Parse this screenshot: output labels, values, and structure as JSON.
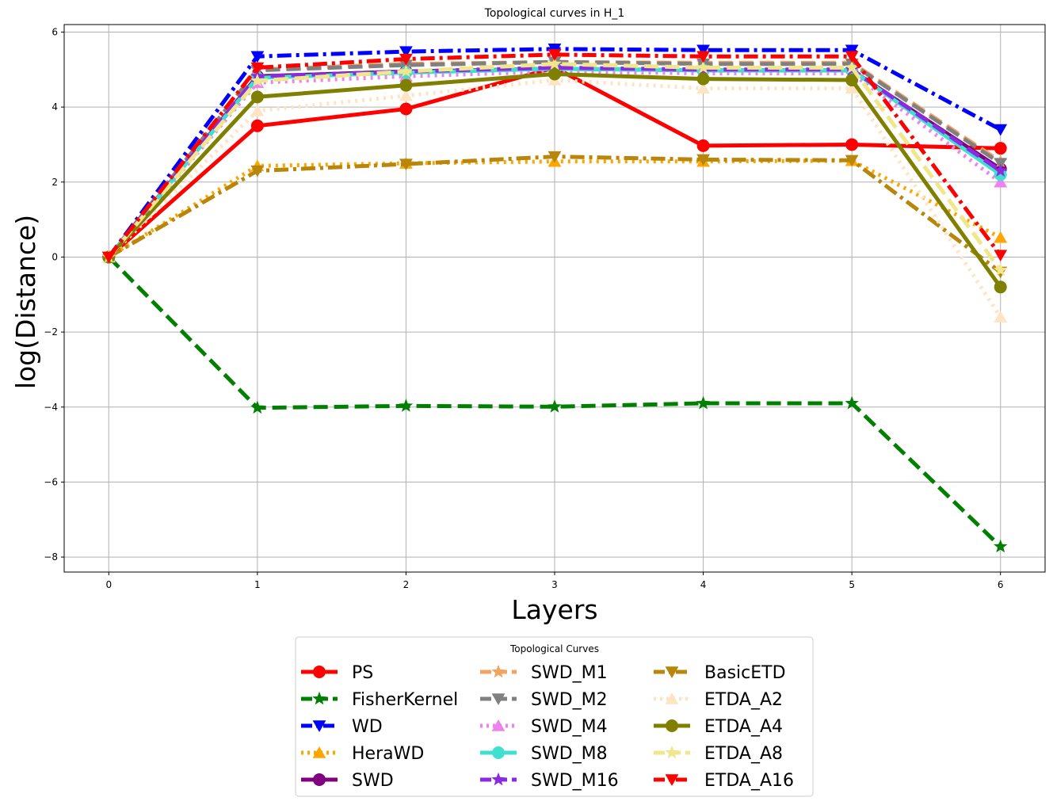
{
  "chart_data": {
    "type": "line",
    "title": "Topological curves in H_1",
    "xlabel": "Layers",
    "ylabel": "log(Distance)",
    "x": [
      0,
      1,
      2,
      3,
      4,
      5,
      6
    ],
    "xlim": [
      -0.3,
      6.3
    ],
    "ylim": [
      -8.4,
      6.2
    ],
    "xticks": [
      0,
      1,
      2,
      3,
      4,
      5,
      6
    ],
    "yticks": [
      -8,
      -6,
      -4,
      -2,
      0,
      2,
      4,
      6
    ],
    "ytick_labels": [
      "−8",
      "−6",
      "−4",
      "−2",
      "0",
      "2",
      "4",
      "6"
    ],
    "grid": true,
    "legend": {
      "title": "Topological Curves",
      "placement": "lower-center-outside",
      "columns": 3
    },
    "series": [
      {
        "name": "PS",
        "color": "#ff0000",
        "dash": "solid",
        "marker": "circle",
        "values": [
          0,
          3.5,
          3.95,
          5.05,
          2.97,
          3.0,
          2.9
        ]
      },
      {
        "name": "FisherKernel",
        "color": "#008000",
        "dash": "dashed",
        "marker": "star",
        "values": [
          0,
          -4.02,
          -3.97,
          -3.99,
          -3.9,
          -3.9,
          -7.72
        ]
      },
      {
        "name": "WD",
        "color": "#0000ff",
        "dash": "dashdot",
        "marker": "triangle-down",
        "values": [
          0,
          5.35,
          5.48,
          5.55,
          5.52,
          5.52,
          3.4
        ]
      },
      {
        "name": "HeraWD",
        "color": "#ffa500",
        "dash": "dotted",
        "marker": "triangle-up",
        "values": [
          0,
          2.43,
          2.5,
          2.55,
          2.55,
          2.57,
          0.52
        ]
      },
      {
        "name": "SWD",
        "color": "#800080",
        "dash": "solid",
        "marker": "circle",
        "values": [
          0,
          4.82,
          4.95,
          5.02,
          4.98,
          4.98,
          2.35
        ]
      },
      {
        "name": "SWD_M1",
        "color": "#f4a460",
        "dash": "dashed",
        "marker": "star",
        "values": [
          0,
          5.0,
          5.15,
          5.2,
          5.18,
          5.18,
          2.55
        ]
      },
      {
        "name": "SWD_M2",
        "color": "#808080",
        "dash": "dashed",
        "marker": "triangle-down",
        "values": [
          0,
          4.98,
          5.12,
          5.2,
          5.15,
          5.15,
          2.5
        ]
      },
      {
        "name": "SWD_M4",
        "color": "#ee82ee",
        "dash": "dotted",
        "marker": "triangle-up",
        "values": [
          0,
          4.65,
          4.82,
          4.95,
          4.9,
          4.9,
          2.0
        ]
      },
      {
        "name": "SWD_M8",
        "color": "#40e0d0",
        "dash": "solid",
        "marker": "circle",
        "values": [
          0,
          4.78,
          4.92,
          5.02,
          4.98,
          4.98,
          2.2
        ]
      },
      {
        "name": "SWD_M16",
        "color": "#8a2be2",
        "dash": "dashed",
        "marker": "star",
        "values": [
          0,
          4.82,
          4.95,
          5.05,
          5.0,
          5.0,
          2.3
        ]
      },
      {
        "name": "BasicETD",
        "color": "#b8860b",
        "dash": "dashdot",
        "marker": "triangle-down",
        "values": [
          0,
          2.3,
          2.48,
          2.68,
          2.6,
          2.58,
          -0.4
        ]
      },
      {
        "name": "ETDA_A2",
        "color": "#ffe4c4",
        "dash": "dotted",
        "marker": "triangle-up",
        "values": [
          0,
          3.9,
          4.3,
          4.72,
          4.5,
          4.5,
          -1.6
        ]
      },
      {
        "name": "ETDA_A4",
        "color": "#808000",
        "dash": "solid",
        "marker": "circle",
        "values": [
          0,
          4.27,
          4.58,
          4.88,
          4.75,
          4.72,
          -0.8
        ]
      },
      {
        "name": "ETDA_A8",
        "color": "#f0e68c",
        "dash": "dashed",
        "marker": "star",
        "values": [
          0,
          4.7,
          4.95,
          5.15,
          5.05,
          5.05,
          -0.35
        ]
      },
      {
        "name": "ETDA_A16",
        "color": "#ff0000",
        "dash": "dashdot",
        "marker": "triangle-down",
        "values": [
          0,
          5.05,
          5.28,
          5.4,
          5.35,
          5.35,
          0.05
        ]
      }
    ]
  }
}
